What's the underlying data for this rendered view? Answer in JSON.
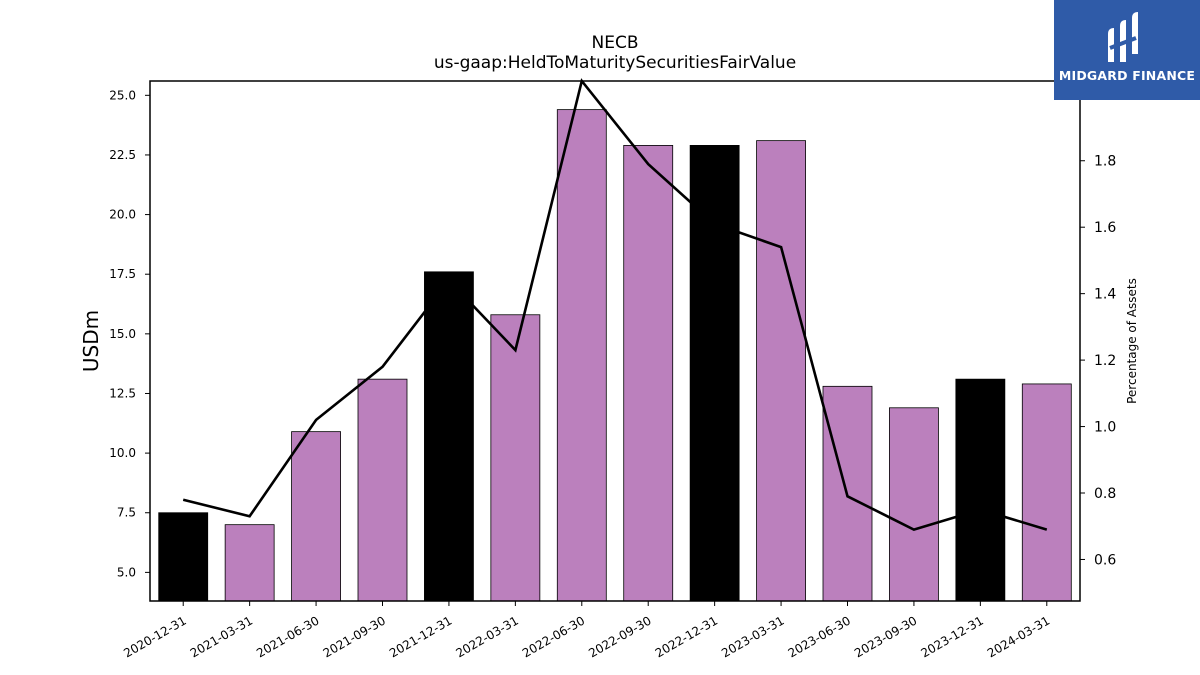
{
  "brand": {
    "name": "MIDGARD FINANCE",
    "bg_color": "#2f5ba8"
  },
  "chart_data": {
    "type": "bar",
    "title": "NECB",
    "subtitle": "us-gaap:HeldToMaturitySecuritiesFairValue",
    "ylabel": "USDm",
    "y2label": "Percentage of Assets",
    "categories": [
      "2020-12-31",
      "2021-03-31",
      "2021-06-30",
      "2021-09-30",
      "2021-12-31",
      "2022-03-31",
      "2022-06-30",
      "2022-09-30",
      "2022-12-31",
      "2023-03-31",
      "2023-06-30",
      "2023-09-30",
      "2023-12-31",
      "2024-03-31"
    ],
    "series": [
      {
        "type": "bar",
        "axis": "left",
        "values": [
          7.5,
          7.0,
          10.9,
          13.1,
          17.6,
          15.8,
          24.4,
          22.9,
          22.9,
          23.1,
          12.8,
          11.9,
          13.1,
          12.9
        ],
        "colors": [
          "#000000",
          "#bb80bd",
          "#bb80bd",
          "#bb80bd",
          "#000000",
          "#bb80bd",
          "#bb80bd",
          "#bb80bd",
          "#000000",
          "#bb80bd",
          "#bb80bd",
          "#bb80bd",
          "#000000",
          "#bb80bd"
        ]
      },
      {
        "type": "line",
        "axis": "right",
        "color": "#000000",
        "values": [
          0.78,
          0.73,
          1.02,
          1.18,
          1.44,
          1.23,
          2.04,
          1.79,
          1.61,
          1.54,
          0.79,
          0.69,
          0.75,
          0.69
        ]
      }
    ],
    "ylim": [
      3.8,
      25.6
    ],
    "yticks": [
      5.0,
      7.5,
      10.0,
      12.5,
      15.0,
      17.5,
      20.0,
      22.5,
      25.0
    ],
    "y2lim": [
      0.475,
      2.04
    ],
    "y2ticks": [
      0.6,
      0.8,
      1.0,
      1.2,
      1.4,
      1.6,
      1.8
    ],
    "grid": false,
    "legend": "none"
  }
}
